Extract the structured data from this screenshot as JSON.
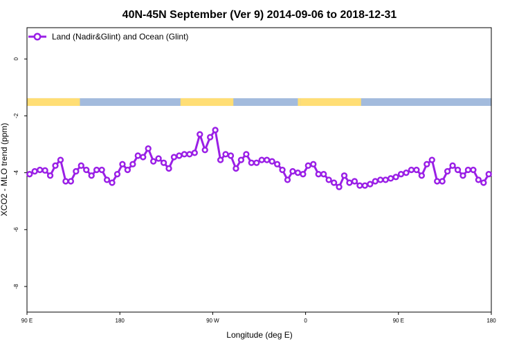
{
  "chart_data": {
    "type": "line",
    "title": "40N-45N September (Ver 9)   2014-09-06 to 2018-12-31",
    "xlabel": "Longitude (deg E)",
    "ylabel": "XCO2 - MLO trend (ppm)",
    "xlim": [
      90,
      450
    ],
    "ylim": [
      -8.9,
      1.1
    ],
    "x_ticks": [
      90,
      162,
      234,
      306,
      378,
      450
    ],
    "x_tick_labels": [
      "90 E",
      "180",
      "90 W",
      "0",
      "90 E",
      "180"
    ],
    "y_ticks": [
      0,
      -2,
      -4,
      -6,
      -8
    ],
    "y_tick_labels": [
      "0",
      "-2",
      "-4",
      "-6",
      "-8"
    ],
    "grid": false,
    "legend_position": "top-left",
    "land_ocean_band": {
      "y_range": [
        -1.65,
        -1.38
      ],
      "land_color": "#ffde75",
      "ocean_color": "#a3bbdd",
      "land_segments": [
        [
          90,
          131
        ],
        [
          209,
          250
        ],
        [
          300,
          302
        ],
        [
          302,
          349
        ]
      ]
    },
    "series": [
      {
        "name": "Land (Nadir&Glint) and Ocean (Glint)",
        "color": "#9a1fe6",
        "x": [
          92,
          96,
          100,
          104,
          108,
          112,
          116,
          120,
          124,
          128,
          132,
          136,
          140,
          144,
          148,
          152,
          156,
          160,
          164,
          168,
          172,
          176,
          180,
          184,
          188,
          192,
          196,
          200,
          204,
          208,
          212,
          216,
          220,
          224,
          228,
          232,
          236,
          240,
          244,
          248,
          252,
          256,
          260,
          264,
          268,
          272,
          276,
          280,
          284,
          288,
          292,
          296,
          300,
          304,
          308,
          312,
          316,
          320,
          324,
          328,
          332,
          336,
          340,
          344,
          348,
          352,
          356,
          360,
          364,
          368,
          372,
          376,
          380,
          384,
          388,
          392,
          396,
          400,
          404,
          408,
          412,
          416,
          420,
          424,
          428,
          432,
          436,
          440,
          444,
          448
        ],
        "y": [
          -4.05,
          -3.95,
          -3.9,
          -3.92,
          -4.1,
          -3.75,
          -3.55,
          -4.3,
          -4.3,
          -3.95,
          -3.75,
          -3.9,
          -4.1,
          -3.9,
          -3.9,
          -4.25,
          -4.35,
          -4.05,
          -3.7,
          -3.9,
          -3.7,
          -3.4,
          -3.45,
          -3.15,
          -3.6,
          -3.5,
          -3.65,
          -3.85,
          -3.45,
          -3.4,
          -3.35,
          -3.35,
          -3.3,
          -2.65,
          -3.2,
          -2.75,
          -2.5,
          -3.55,
          -3.35,
          -3.4,
          -3.85,
          -3.55,
          -3.35,
          -3.65,
          -3.65,
          -3.55,
          -3.55,
          -3.6,
          -3.7,
          -3.9,
          -4.25,
          -3.95,
          -4.0,
          -4.05,
          -3.75,
          -3.7,
          -4.05,
          -4.05,
          -4.25,
          -4.35,
          -4.5,
          -4.1,
          -4.35,
          -4.3,
          -4.45,
          -4.45,
          -4.4,
          -4.3,
          -4.25,
          -4.25,
          -4.2,
          -4.15,
          -4.05,
          -4.0,
          -3.9,
          -3.9,
          -4.1,
          -3.7,
          -3.55,
          -4.3,
          -4.3,
          -3.95,
          -3.75,
          -3.9,
          -4.1,
          -3.9,
          -3.9,
          -4.25,
          -4.35,
          -4.05
        ]
      }
    ]
  }
}
